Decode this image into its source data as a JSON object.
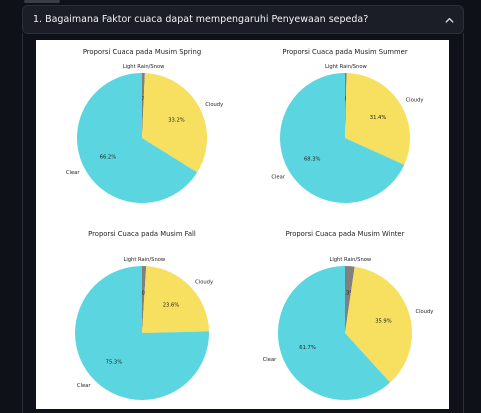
{
  "expander": {
    "title": "1. Bagaimana Faktor cuaca dapat mempengaruhi Penyewaan sepeda?",
    "chevron_icon": "chevron-up-icon"
  },
  "colors": {
    "clear": "#5bd6e0",
    "cloudy": "#f7df5f",
    "light_rain_snow": "#808080"
  },
  "chart_data": [
    {
      "type": "pie",
      "title": "Proporsi Cuaca pada Musim Spring",
      "slices": [
        {
          "label": "Light Rain/Snow",
          "value": 0.7,
          "pct_label": "0.7%"
        },
        {
          "label": "Cloudy",
          "value": 33.2,
          "pct_label": "33.2%"
        },
        {
          "label": "Clear",
          "value": 66.2,
          "pct_label": "66.2%"
        }
      ]
    },
    {
      "type": "pie",
      "title": "Proporsi Cuaca pada Musim Summer",
      "slices": [
        {
          "label": "Light Rain/Snow",
          "value": 0.4,
          "pct_label": "0.4%"
        },
        {
          "label": "Cloudy",
          "value": 31.4,
          "pct_label": "31.4%"
        },
        {
          "label": "Clear",
          "value": 68.3,
          "pct_label": "68.3%"
        }
      ]
    },
    {
      "type": "pie",
      "title": "Proporsi Cuaca pada Musim Fall",
      "slices": [
        {
          "label": "Light Rain/Snow",
          "value": 1.0,
          "pct_label": "1.0%"
        },
        {
          "label": "Cloudy",
          "value": 23.6,
          "pct_label": "23.6%"
        },
        {
          "label": "Clear",
          "value": 75.3,
          "pct_label": "75.3%"
        }
      ]
    },
    {
      "type": "pie",
      "title": "Proporsi Cuaca pada Musim Winter",
      "slices": [
        {
          "label": "Light Rain/Snow",
          "value": 2.3,
          "pct_label": "2.3%"
        },
        {
          "label": "Cloudy",
          "value": 35.9,
          "pct_label": "35.9%"
        },
        {
          "label": "Clear",
          "value": 61.7,
          "pct_label": "61.7%"
        }
      ]
    }
  ]
}
